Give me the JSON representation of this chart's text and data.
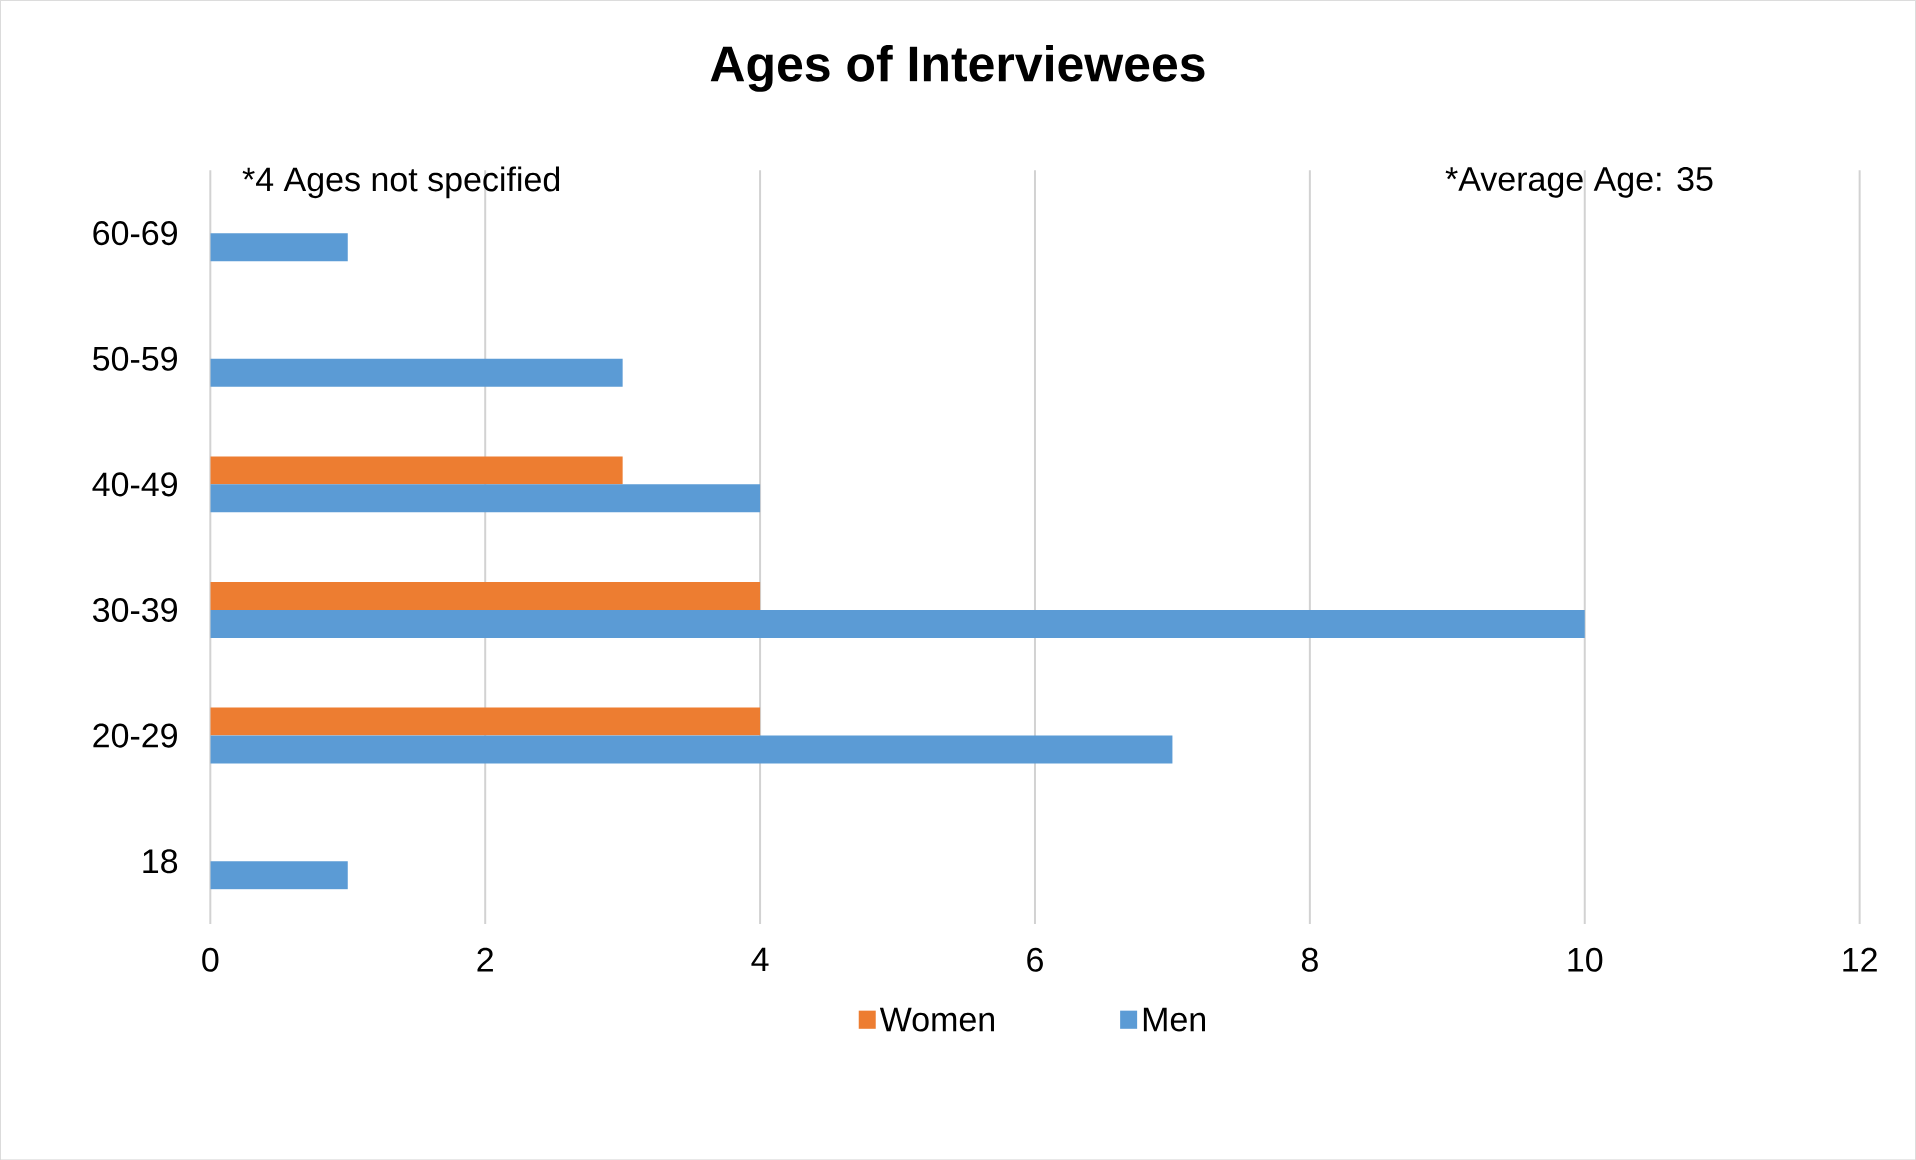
{
  "chart_data": {
    "type": "bar",
    "orientation": "horizontal",
    "title": "Ages of Interviewees",
    "annotations": [
      "*4 Ages not specified",
      "*Average Age: 35"
    ],
    "categories": [
      "60-69",
      "50-59",
      "40-49",
      "30-39",
      "20-29",
      "18"
    ],
    "series": [
      {
        "name": "Women",
        "color": "#ed7d31",
        "values": [
          null,
          null,
          3,
          4,
          4,
          null
        ]
      },
      {
        "name": "Men",
        "color": "#5b9bd5",
        "values": [
          1,
          3,
          4,
          10,
          7,
          1
        ]
      }
    ],
    "xlim": [
      0,
      12
    ],
    "xticks": [
      0,
      2,
      4,
      6,
      8,
      10,
      12
    ],
    "grid": "x",
    "legend": "bottom"
  }
}
